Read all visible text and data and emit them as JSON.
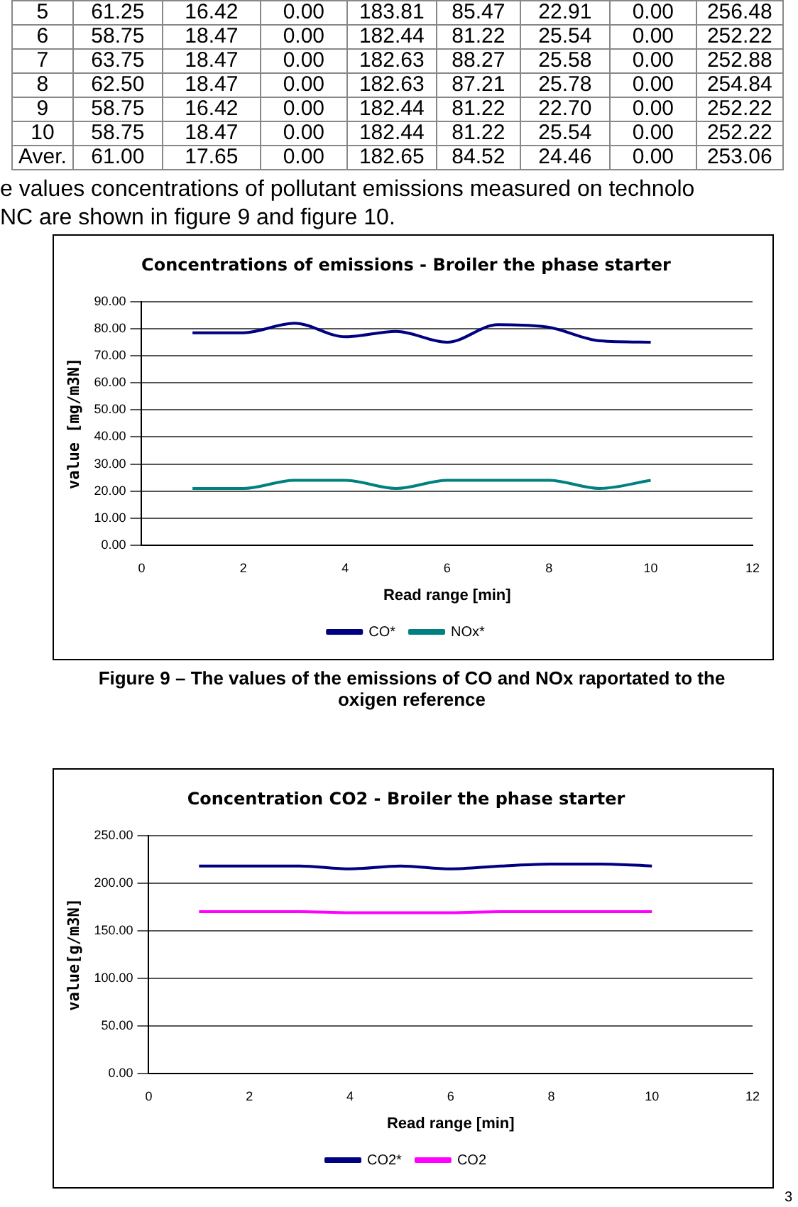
{
  "chart_data": [
    {
      "type": "line",
      "title": "Concentrations of emissions - Broiler the phase starter",
      "xlabel": "Read range [min]",
      "ylabel": "value [mg/m3N]",
      "x": [
        1,
        2,
        3,
        4,
        5,
        6,
        7,
        8,
        9,
        10
      ],
      "series": [
        {
          "name": "CO*",
          "color": "#000080",
          "values": [
            78.5,
            78.5,
            82,
            77,
            79,
            75,
            81.5,
            80.5,
            75.5,
            75
          ]
        },
        {
          "name": "NOx*",
          "color": "#008080",
          "values": [
            21,
            21,
            24,
            24,
            21,
            24,
            24,
            24,
            21,
            24
          ]
        }
      ],
      "xlim": [
        0,
        12
      ],
      "xticks": [
        0,
        2,
        4,
        6,
        8,
        10,
        12
      ],
      "ylim": [
        0,
        90
      ],
      "yticks": [
        {
          "value": 0,
          "label": "0.00"
        },
        {
          "value": 10,
          "label": "10.00"
        },
        {
          "value": 20,
          "label": "20.00"
        },
        {
          "value": 30,
          "label": "30.00"
        },
        {
          "value": 40,
          "label": "40.00"
        },
        {
          "value": 50,
          "label": "50.00"
        },
        {
          "value": 60,
          "label": "60.00"
        },
        {
          "value": 70,
          "label": "70.00"
        },
        {
          "value": 80,
          "label": "80.00"
        },
        {
          "value": 90,
          "label": "90.00"
        }
      ],
      "grid": "y",
      "legend": "bottom",
      "marker": "none",
      "line_style": "solid",
      "annotations": [
        "5\t61.25\t16.42\t0.00\t183.81\t85.47\t22.91\t0.00\t256.48",
        "6\t58.75\t18.47\t0.00\t182.44\t81.22\t25.54\t0.00\t252.22",
        "7\t63.75\t18.47\t0.00\t182.63\t88.27\t25.58\t0.00\t252.88",
        "8\t62.50\t18.47\t0.00\t182.63\t87.21\t25.78\t0.00\t254.84",
        "9\t58.75\t16.42\t0.00\t182.44\t81.22\t22.70\t0.00\t252.22",
        "10\t58.75\t18.47\t0.00\t182.44\t81.22\t25.54\t0.00\t252.22",
        "Aver.\t61.00\t17.65\t0.00\t182.65\t84.52\t24.46\t0.00\t253.06",
        "e values concentrations of pollutant emissions measured on technolo",
        "NC are shown in figure 9 and figure 10.",
        "Figure 9 – The values of the emissions of CO and NOx raportated to the oxigen reference"
      ]
    },
    {
      "type": "line",
      "title": "Concentration CO2 - Broiler the phase starter",
      "xlabel": "Read range [min]",
      "ylabel": "value[g/m3N]",
      "x": [
        1,
        2,
        3,
        4,
        5,
        6,
        7,
        8,
        9,
        10
      ],
      "series": [
        {
          "name": "CO2*",
          "color": "#000080",
          "values": [
            218,
            218,
            218,
            215,
            218,
            215,
            218,
            220,
            220,
            218
          ]
        },
        {
          "name": "CO2",
          "color": "#ff00ff",
          "values": [
            170,
            170,
            170,
            169,
            169,
            169,
            170,
            170,
            170,
            170
          ]
        }
      ],
      "xlim": [
        0,
        12
      ],
      "xticks": [
        0,
        2,
        4,
        6,
        8,
        10,
        12
      ],
      "ylim": [
        0,
        250
      ],
      "yticks": [
        {
          "value": 0,
          "label": "0.00"
        },
        {
          "value": 50,
          "label": "50.00"
        },
        {
          "value": 100,
          "label": "100.00"
        },
        {
          "value": 150,
          "label": "150.00"
        },
        {
          "value": 200,
          "label": "200.00"
        },
        {
          "value": 250,
          "label": "250.00"
        }
      ],
      "grid": "y",
      "legend": "bottom",
      "marker": "none",
      "line_style": "solid",
      "annotations": [
        "3"
      ]
    }
  ]
}
